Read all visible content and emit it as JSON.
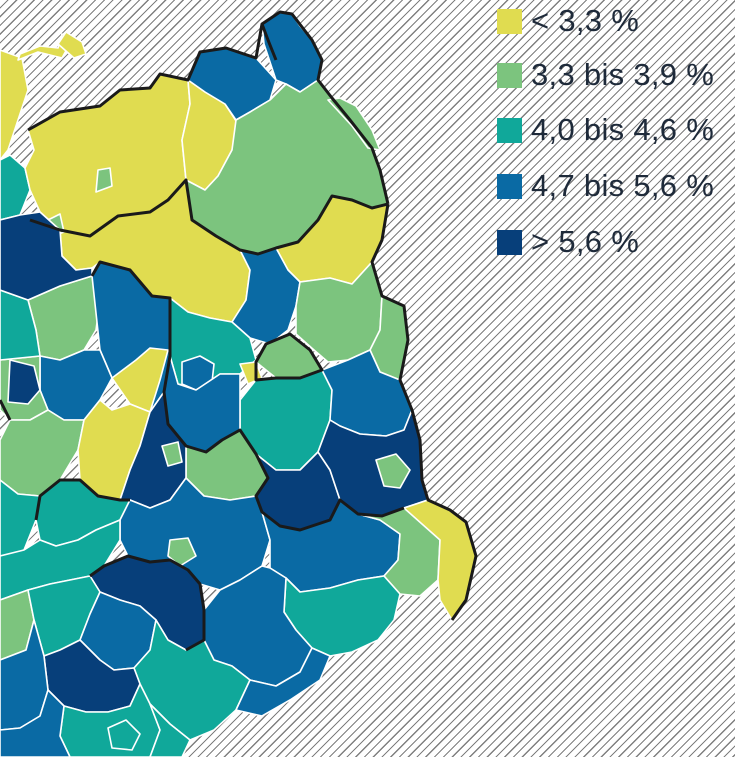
{
  "legend": {
    "items": [
      {
        "label": "< 3,3 %",
        "color": "#e0dc50"
      },
      {
        "label": "3,3 bis 3,9 %",
        "color": "#7cc47e"
      },
      {
        "label": "4,0 bis 4,6 %",
        "color": "#10a89a"
      },
      {
        "label": "4,7 bis 5,6 %",
        "color": "#0a6aa4"
      },
      {
        "label": "> 5,6 %",
        "color": "#073f7a"
      }
    ]
  }
}
